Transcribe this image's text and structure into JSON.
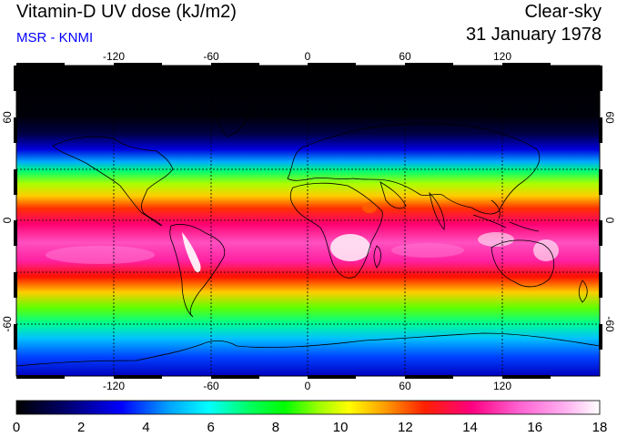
{
  "header": {
    "title": "Vitamin-D UV dose (kJ/m2)",
    "subtitle": "MSR - KNMI",
    "scene": "Clear-sky",
    "date": "31 January 1978"
  },
  "map": {
    "lon_ticks": [
      "-120",
      "-60",
      "0",
      "60",
      "120"
    ],
    "lat_ticks_left": [
      "60",
      "0",
      "-60"
    ],
    "lat_ticks_right": [
      "60",
      "0",
      "-60"
    ]
  },
  "colorbar": {
    "ticks": [
      "0",
      "2",
      "4",
      "6",
      "8",
      "10",
      "12",
      "14",
      "16",
      "18"
    ],
    "min": 0,
    "max": 18
  },
  "colors": {
    "subtitle": "#0000ff",
    "scale": [
      "#000000",
      "#000066",
      "#0000ff",
      "#00a0ff",
      "#00ffff",
      "#00ff60",
      "#00ff00",
      "#a0ff00",
      "#ffff00",
      "#ffa000",
      "#ff2000",
      "#ff0080",
      "#ff60d0",
      "#ffb0f0",
      "#ffffff"
    ]
  }
}
